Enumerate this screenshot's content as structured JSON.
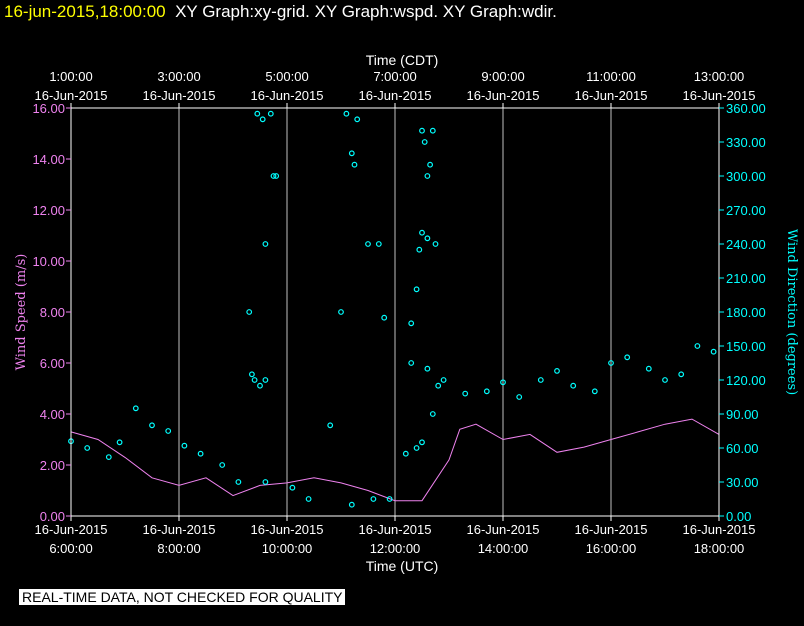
{
  "header": {
    "timestamp": "16-jun-2015,18:00:00",
    "graphs": "XY Graph:xy-grid.  XY Graph:wspd.  XY Graph:wdir."
  },
  "notice": "REAL-TIME DATA, NOT CHECKED FOR QUALITY",
  "colors": {
    "speed": "#ee82ee",
    "direction": "#00ffff",
    "timestamp": "#ffff00",
    "grid": "#ffffff"
  },
  "chart_data": {
    "type": "line",
    "xlabel_bottom": "Time (UTC)",
    "xlabel_top": "Time (CDT)",
    "ylabel_left": "Wind Speed (m/s)",
    "ylabel_right": "Wind Direction (degrees)",
    "x_range_utc_hours": [
      6,
      18
    ],
    "grid": true,
    "bottom_ticks": [
      {
        "date": "16-Jun-2015",
        "time": "6:00:00"
      },
      {
        "date": "16-Jun-2015",
        "time": "8:00:00"
      },
      {
        "date": "16-Jun-2015",
        "time": "10:00:00"
      },
      {
        "date": "16-Jun-2015",
        "time": "12:00:00"
      },
      {
        "date": "16-Jun-2015",
        "time": "14:00:00"
      },
      {
        "date": "16-Jun-2015",
        "time": "16:00:00"
      },
      {
        "date": "16-Jun-2015",
        "time": "18:00:00"
      }
    ],
    "top_ticks": [
      {
        "time": "1:00:00",
        "date": "16-Jun-2015"
      },
      {
        "time": "3:00:00",
        "date": "16-Jun-2015"
      },
      {
        "time": "5:00:00",
        "date": "16-Jun-2015"
      },
      {
        "time": "7:00:00",
        "date": "16-Jun-2015"
      },
      {
        "time": "9:00:00",
        "date": "16-Jun-2015"
      },
      {
        "time": "11:00:00",
        "date": "16-Jun-2015"
      },
      {
        "time": "13:00:00",
        "date": "16-Jun-2015"
      }
    ],
    "y_left": {
      "min": 0,
      "max": 16,
      "ticks": [
        "0.00",
        "2.00",
        "4.00",
        "6.00",
        "8.00",
        "10.00",
        "12.00",
        "14.00",
        "16.00"
      ]
    },
    "y_right": {
      "min": 0,
      "max": 360,
      "ticks": [
        "0.00",
        "30.00",
        "60.00",
        "90.00",
        "120.00",
        "150.00",
        "180.00",
        "210.00",
        "240.00",
        "270.00",
        "300.00",
        "330.00",
        "360.00"
      ]
    },
    "series": [
      {
        "name": "wspd",
        "style": "line",
        "x": [
          6.0,
          6.5,
          7.0,
          7.5,
          8.0,
          8.5,
          9.0,
          9.5,
          10.0,
          10.5,
          11.0,
          11.5,
          12.0,
          12.5,
          13.0,
          13.2,
          13.5,
          14.0,
          14.5,
          15.0,
          15.5,
          16.0,
          16.5,
          17.0,
          17.5,
          18.0
        ],
        "values": [
          3.3,
          3.0,
          2.3,
          1.5,
          1.2,
          1.5,
          0.8,
          1.2,
          1.3,
          1.5,
          1.3,
          1.0,
          0.6,
          0.6,
          2.2,
          3.4,
          3.6,
          3.0,
          3.2,
          2.5,
          2.7,
          3.0,
          3.3,
          3.6,
          3.8,
          3.2
        ]
      },
      {
        "name": "wdir",
        "style": "markers",
        "x": [
          6.0,
          6.3,
          6.7,
          6.9,
          7.2,
          7.5,
          7.8,
          8.1,
          8.4,
          8.8,
          9.1,
          9.6,
          10.1,
          10.4,
          10.8,
          11.2,
          11.6,
          11.9,
          12.2,
          12.5,
          12.7,
          12.9,
          13.3,
          13.7,
          14.0,
          14.3,
          14.7,
          15.0,
          15.3,
          15.7,
          16.0,
          16.3,
          16.7,
          17.0,
          17.3,
          17.6,
          17.9
        ],
        "values": [
          66,
          60,
          52,
          65,
          95,
          80,
          75,
          62,
          55,
          45,
          30,
          30,
          25,
          15,
          80,
          10,
          15,
          15,
          55,
          65,
          90,
          120,
          108,
          110,
          118,
          105,
          120,
          128,
          115,
          110,
          135,
          140,
          130,
          120,
          125,
          150,
          145
        ]
      },
      {
        "name": "wdir-scatter",
        "style": "markers",
        "x": [
          9.3,
          9.35,
          9.45,
          9.55,
          9.7,
          9.75,
          9.8,
          9.4,
          9.6,
          9.5,
          9.6,
          11.0,
          11.1,
          11.2,
          11.3,
          11.25,
          11.5,
          11.7,
          11.8,
          12.3,
          12.4,
          12.5,
          12.55,
          12.6,
          12.7,
          12.65,
          12.75,
          12.6,
          12.5,
          12.45,
          12.4,
          12.3,
          12.6,
          12.8
        ],
        "values": [
          180,
          125,
          355,
          350,
          355,
          300,
          300,
          120,
          240,
          115,
          120,
          180,
          355,
          320,
          350,
          310,
          240,
          240,
          175,
          135,
          60,
          340,
          330,
          300,
          340,
          310,
          240,
          245,
          250,
          235,
          200,
          170,
          130,
          115
        ]
      }
    ]
  }
}
